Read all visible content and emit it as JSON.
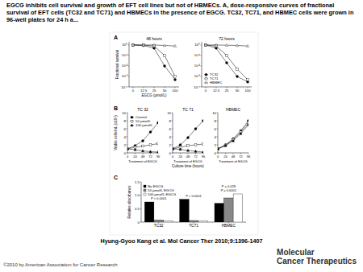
{
  "title": "EGCG inhibits cell survival and growth of EFT cell lines but not of HBMECs. A, dose-responsive curves of fractional survival of EFT cells (TC32 and TC71) and HBMECs in the presence of EGCG. TC32, TC71, and HBMEC cells were grown in 96-well plates for 24 h a...",
  "citation": "Hyung-Gyoo Kang et al. Mol Cancer Ther 2010;9:1396-1407",
  "copyright": "©2010 by American Association for Cancer Research",
  "journal": [
    "Molecular",
    "Cancer Therapeutics"
  ],
  "chart_data": [
    {
      "type": "line",
      "panel": "A",
      "title": "48 hours",
      "y_label": "Fractional survival",
      "x_label": "EGCG (µmol/L)",
      "categories": [
        "0",
        "12.5",
        "25",
        "50",
        "100"
      ],
      "log": "y",
      "ylim": [
        0.0001,
        2
      ],
      "yticks": [
        {
          "value": 1,
          "label": "10⁰"
        },
        {
          "value": 0.1,
          "label": "10⁻¹"
        },
        {
          "value": 0.01,
          "label": "10⁻²"
        },
        {
          "value": 0.001,
          "label": "10⁻³"
        },
        {
          "value": 0.0001,
          "label": "10⁻⁴"
        }
      ],
      "series": [
        {
          "name": "TC32",
          "color": "#000000",
          "marker": "circle",
          "values": [
            1,
            0.9,
            0.5,
            0.01,
            0.0005
          ]
        },
        {
          "name": "TC71",
          "color": "#000000",
          "marker": "open-square",
          "values": [
            1,
            0.95,
            0.8,
            0.1,
            0.001
          ]
        },
        {
          "name": "HBMEC",
          "color": "#000000",
          "marker": "open-triangle",
          "values": [
            1,
            1,
            1,
            0.9,
            0.8
          ]
        }
      ]
    },
    {
      "type": "line",
      "title": "72 hours",
      "categories": [
        "0",
        "12.5",
        "25",
        "50",
        "100"
      ],
      "log": "y",
      "ylim": [
        0.0001,
        2
      ],
      "yticks": [
        {
          "value": 1,
          "label": "10⁰"
        },
        {
          "value": 0.1,
          "label": "10⁻¹"
        },
        {
          "value": 0.01,
          "label": "10⁻²"
        },
        {
          "value": 0.001,
          "label": "10⁻³"
        },
        {
          "value": 0.0001,
          "label": "10⁻⁴"
        }
      ],
      "legend": "lower left",
      "series": [
        {
          "name": "TC32",
          "color": "#000000",
          "marker": "circle",
          "values": [
            1,
            0.5,
            0.02,
            0.001,
            0.0003
          ]
        },
        {
          "name": "TC71",
          "color": "#000000",
          "marker": "open-square",
          "values": [
            1,
            0.8,
            0.1,
            0.005,
            0.0005
          ]
        },
        {
          "name": "HBMEC",
          "color": "#000000",
          "marker": "open-triangle",
          "values": [
            1,
            1,
            0.95,
            0.9,
            0.8
          ]
        }
      ]
    },
    {
      "type": "line",
      "panel": "B",
      "title": "TC 32",
      "y_label": "Viable cells/mL (x10⁵)",
      "annotation": "Treatment of EGCG",
      "x": [
        0,
        24,
        48,
        72,
        96
      ],
      "xlim": [
        0,
        96
      ],
      "xticks": [
        0,
        24,
        48,
        72,
        96
      ],
      "ylim": [
        0,
        10
      ],
      "yticks": [
        0,
        2,
        4,
        6,
        8,
        10
      ],
      "legend": "upper left",
      "series": [
        {
          "name": "Control",
          "color": "#000000",
          "marker": "circle",
          "values": [
            1,
            1.8,
            3,
            5.2,
            7.5
          ]
        },
        {
          "name": "50 µmol/L",
          "color": "#000000",
          "marker": "open-square",
          "values": [
            1,
            1.4,
            1.7,
            2,
            2.3
          ]
        },
        {
          "name": "100 µmol/L",
          "color": "#000000",
          "marker": "triangle",
          "values": [
            1,
            0.8,
            0.5,
            0.3,
            0.2
          ]
        }
      ]
    },
    {
      "type": "line",
      "title": "TC 71",
      "x_label": "Culture time (hours)",
      "annotation": "Treatment of EGCG",
      "x": [
        0,
        24,
        48,
        72,
        96
      ],
      "xlim": [
        0,
        96
      ],
      "xticks": [
        0,
        24,
        48,
        72,
        96
      ],
      "ylim": [
        0,
        10
      ],
      "yticks": [
        0,
        2,
        4,
        6,
        8,
        10
      ],
      "series": [
        {
          "name": "Control",
          "color": "#000000",
          "marker": "circle",
          "values": [
            1,
            2,
            3.8,
            6,
            8
          ]
        },
        {
          "name": "50 µmol/L",
          "color": "#000000",
          "marker": "open-square",
          "values": [
            1,
            1.4,
            1.8,
            2,
            2.2
          ]
        },
        {
          "name": "100 µmol/L",
          "color": "#000000",
          "marker": "triangle",
          "values": [
            1,
            0.9,
            0.6,
            0.4,
            0.2
          ]
        }
      ]
    },
    {
      "type": "line",
      "title": "HBMEC",
      "annotation": "Treatment of EGCG",
      "x": [
        0,
        24,
        48,
        72,
        96
      ],
      "xlim": [
        0,
        96
      ],
      "xticks": [
        0,
        24,
        48,
        72,
        96
      ],
      "ylim": [
        0,
        10
      ],
      "yticks": [
        0,
        2,
        4,
        6,
        8,
        10
      ],
      "series": [
        {
          "name": "Control",
          "color": "#000000",
          "marker": "circle",
          "values": [
            1,
            2,
            3.5,
            5.5,
            8
          ]
        },
        {
          "name": "50 µmol/L",
          "color": "#000000",
          "marker": "open-square",
          "values": [
            1,
            1.9,
            3.3,
            5.2,
            7.5
          ]
        },
        {
          "name": "100 µmol/L",
          "color": "#000000",
          "marker": "triangle",
          "values": [
            1,
            1.8,
            3,
            4.8,
            7
          ]
        }
      ]
    },
    {
      "type": "bar",
      "panel": "C",
      "y_label": "Relative absorbance",
      "categories": [
        "TC32",
        "TC71",
        "HBMEC"
      ],
      "ylim": [
        0,
        1.5
      ],
      "yticks": [
        0,
        0.5,
        {
          "value": 1,
          "label": "1.0"
        },
        1.5
      ],
      "legend": "upper left",
      "series": [
        {
          "name": "No EGCG",
          "color": "#000000",
          "values": [
            0.75,
            0.85,
            0.7
          ]
        },
        {
          "name": "50 µmol/L EGCG",
          "color": "#888888",
          "values": [
            0.08,
            0.06,
            0.9
          ]
        },
        {
          "name": "100 µmol/L EGCG",
          "color": "#ffffff",
          "values": [
            0.05,
            0.05,
            1.05
          ]
        }
      ],
      "annotations": [
        {
          "text": "P < 0.0001",
          "category": "TC32"
        },
        {
          "text": "P < 0.0001",
          "category": "TC71"
        },
        {
          "text": "P = 0.0001",
          "category": "HBMEC"
        },
        {
          "text": "P = 0.028",
          "category": "HBMEC"
        }
      ]
    }
  ]
}
